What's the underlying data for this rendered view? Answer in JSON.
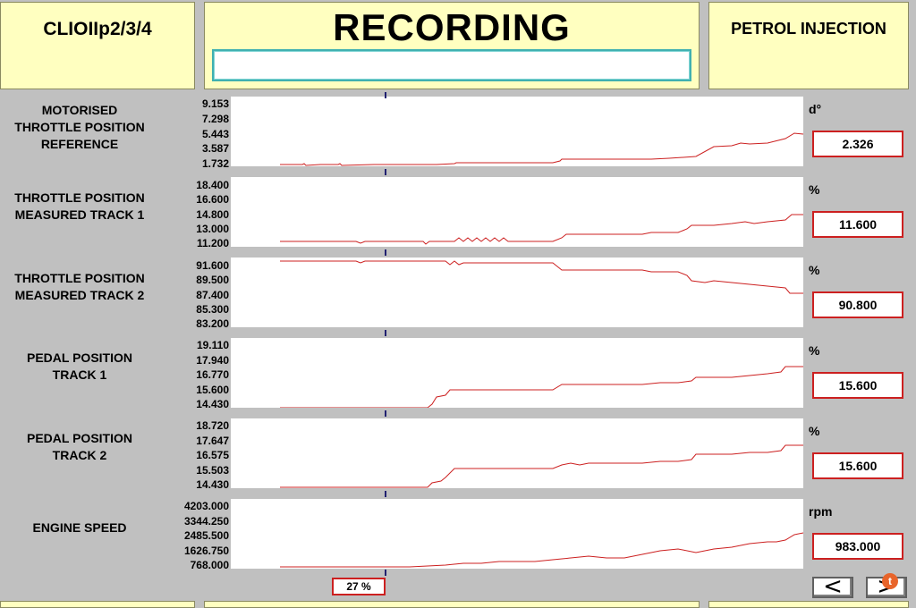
{
  "header": {
    "vehicle": "CLIOIIp2/3/4",
    "title": "RECORDING",
    "system": "PETROL INJECTION"
  },
  "channels": [
    {
      "label_lines": [
        "MOTORISED",
        "THROTTLE POSITION",
        "REFERENCE"
      ],
      "ticks": [
        "9.153",
        "7.298",
        "5.443",
        "3.587",
        "1.732"
      ],
      "unit": "d°",
      "value": "2.326"
    },
    {
      "label_lines": [
        "THROTTLE POSITION",
        "MEASURED TRACK 1"
      ],
      "ticks": [
        "18.400",
        "16.600",
        "14.800",
        "13.000",
        "11.200"
      ],
      "unit": "%",
      "value": "11.600"
    },
    {
      "label_lines": [
        "THROTTLE POSITION",
        "MEASURED TRACK 2"
      ],
      "ticks": [
        "91.600",
        "89.500",
        "87.400",
        "85.300",
        "83.200"
      ],
      "unit": "%",
      "value": "90.800"
    },
    {
      "label_lines": [
        "PEDAL POSITION",
        "TRACK 1"
      ],
      "ticks": [
        "19.110",
        "17.940",
        "16.770",
        "15.600",
        "14.430"
      ],
      "unit": "%",
      "value": "15.600"
    },
    {
      "label_lines": [
        "PEDAL POSITION",
        "TRACK 2"
      ],
      "ticks": [
        "18.720",
        "17.647",
        "16.575",
        "15.503",
        "14.430"
      ],
      "unit": "%",
      "value": "15.600"
    },
    {
      "label_lines": [
        "ENGINE SPEED"
      ],
      "ticks": [
        "4203.000",
        "3344.250",
        "2485.500",
        "1626.750",
        "768.000"
      ],
      "unit": "rpm",
      "value": "983.000"
    }
  ],
  "playback": {
    "progress": "27 %"
  },
  "navigation": {
    "prev_glyph": "<",
    "next_glyph": ">",
    "badge_glyph": "t"
  },
  "colors": {
    "trace": "#cc2020",
    "panel_yellow": "#ffffc0",
    "background": "#c0c0c0"
  }
}
